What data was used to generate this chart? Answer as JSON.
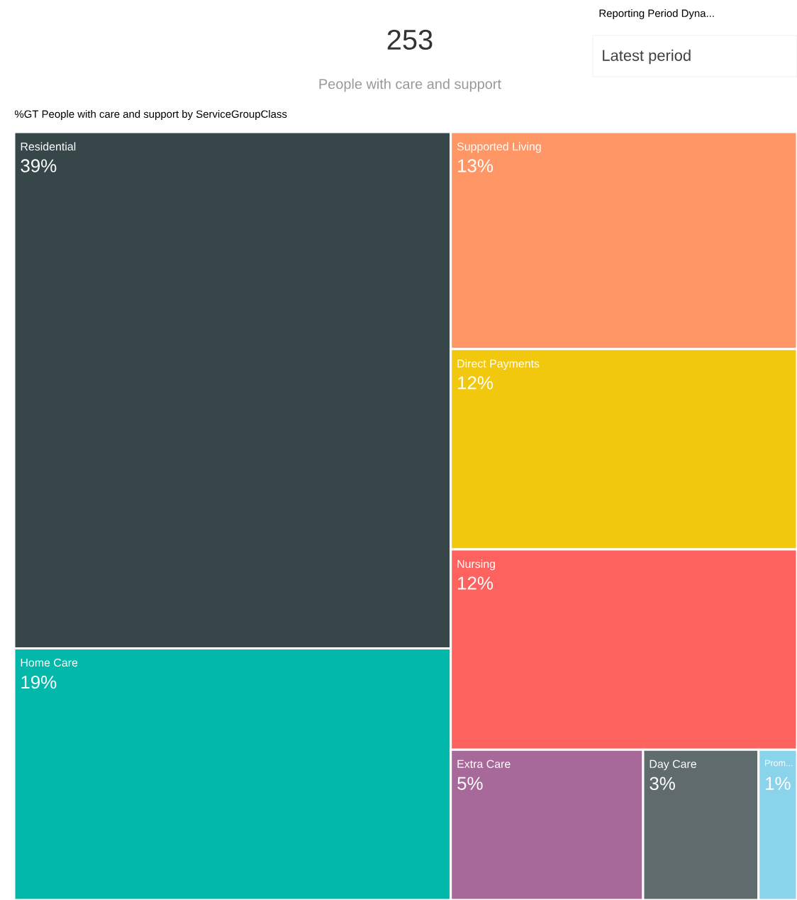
{
  "chart_data": {
    "type": "other",
    "title": "%GT People with care and support by ServiceGroupClass",
    "categories": [
      "Residential",
      "Home Care",
      "Supported Living",
      "Direct Payments",
      "Nursing",
      "Extra Care",
      "Day Care",
      "Prom..."
    ],
    "values": [
      39,
      19,
      13,
      12,
      12,
      5,
      3,
      1
    ],
    "value_labels": [
      "39%",
      "19%",
      "13%",
      "12%",
      "12%",
      "5%",
      "3%",
      "1%"
    ],
    "colors": [
      "#374649",
      "#01b8aa",
      "#fe9666",
      "#f2c80f",
      "#fd625e",
      "#a66999",
      "#5f6b6d",
      "#8ad4eb"
    ],
    "annotations": [
      "253",
      "People with care and support",
      "Reporting Period Dyna...",
      "Latest period"
    ]
  }
}
